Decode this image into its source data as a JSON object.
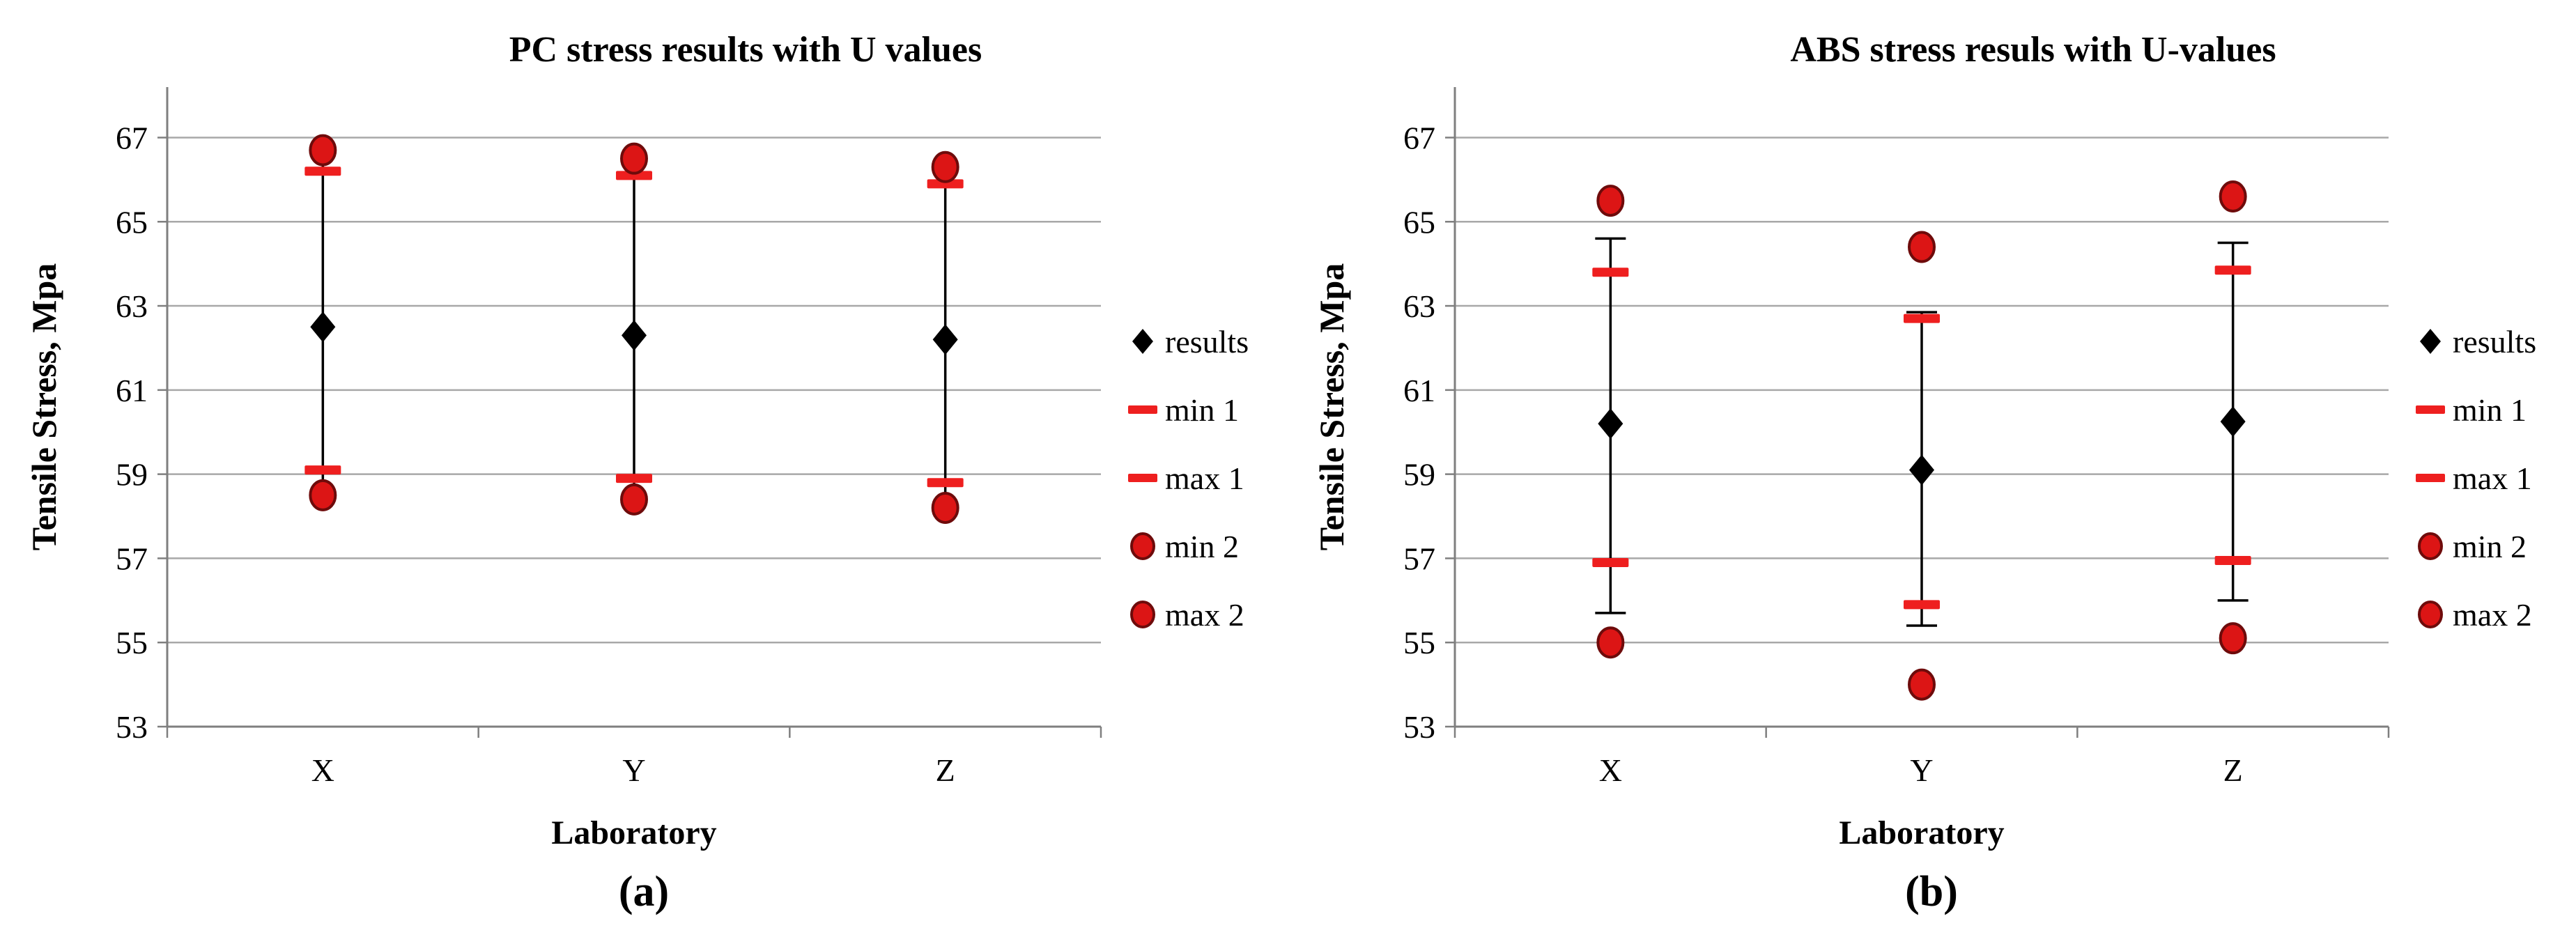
{
  "figure": {
    "description_visible_text_only": "Two scatter charts with error bars comparing tensile stress results and uncertainty values",
    "captions": [
      "(a)",
      "(b)"
    ]
  },
  "colors": {
    "background": "#ffffff",
    "red_dash": "#ee1f1f",
    "red_circle_fill": "#dc1515",
    "red_circle_edge": "#6e0b0b",
    "black_marker": "#000000",
    "gridline": "#a8a8a8",
    "axis": "#7f7f7f",
    "text": "#000000"
  },
  "chart_data": [
    {
      "type": "scatter",
      "title": "PC stress results with U values",
      "xlabel": "Laboratory",
      "ylabel": "Tensile Stress, Mpa",
      "caption": "(a)",
      "categories": [
        "X",
        "Y",
        "Z"
      ],
      "ylim": [
        53,
        68.2
      ],
      "yticks": [
        53,
        55,
        57,
        59,
        61,
        63,
        65,
        67
      ],
      "grid": "horizontal",
      "legend_position": "right",
      "series": [
        {
          "name": "results",
          "marker": "diamond",
          "color": "#000000",
          "values": [
            62.5,
            62.3,
            62.2
          ]
        },
        {
          "name": "min 1",
          "marker": "dash",
          "color": "#ee1f1f",
          "values": [
            59.1,
            58.9,
            58.8
          ]
        },
        {
          "name": "max 1",
          "marker": "dash",
          "color": "#ee1f1f",
          "values": [
            66.2,
            66.1,
            65.9
          ]
        },
        {
          "name": "min 2",
          "marker": "circle",
          "color": "#dc1515",
          "values": [
            58.5,
            58.4,
            58.2
          ]
        },
        {
          "name": "max 2",
          "marker": "circle",
          "color": "#dc1515",
          "values": [
            66.7,
            66.5,
            66.3
          ]
        }
      ],
      "error_bars": {
        "low": [
          58.5,
          58.4,
          58.2
        ],
        "high": [
          66.7,
          66.5,
          66.3
        ],
        "caps": false
      }
    },
    {
      "type": "scatter",
      "title": "ABS stress resuls with U-values",
      "xlabel": "Laboratory",
      "ylabel": "Tensile Stress, Mpa",
      "caption": "(b)",
      "categories": [
        "X",
        "Y",
        "Z"
      ],
      "ylim": [
        53,
        68.2
      ],
      "yticks": [
        53,
        55,
        57,
        59,
        61,
        63,
        65,
        67
      ],
      "grid": "horizontal",
      "legend_position": "right",
      "series": [
        {
          "name": "results",
          "marker": "diamond",
          "color": "#000000",
          "values": [
            60.2,
            59.1,
            60.25
          ]
        },
        {
          "name": "min 1",
          "marker": "dash",
          "color": "#ee1f1f",
          "values": [
            56.9,
            55.9,
            56.95
          ]
        },
        {
          "name": "max 1",
          "marker": "dash",
          "color": "#ee1f1f",
          "values": [
            63.8,
            62.7,
            63.85
          ]
        },
        {
          "name": "min 2",
          "marker": "circle",
          "color": "#dc1515",
          "values": [
            55.0,
            54.0,
            55.1
          ]
        },
        {
          "name": "max 2",
          "marker": "circle",
          "color": "#dc1515",
          "values": [
            65.5,
            64.4,
            65.6
          ]
        }
      ],
      "error_bars": {
        "low": [
          55.7,
          55.4,
          56.0
        ],
        "high": [
          64.6,
          62.85,
          64.5
        ],
        "caps": true
      }
    }
  ]
}
